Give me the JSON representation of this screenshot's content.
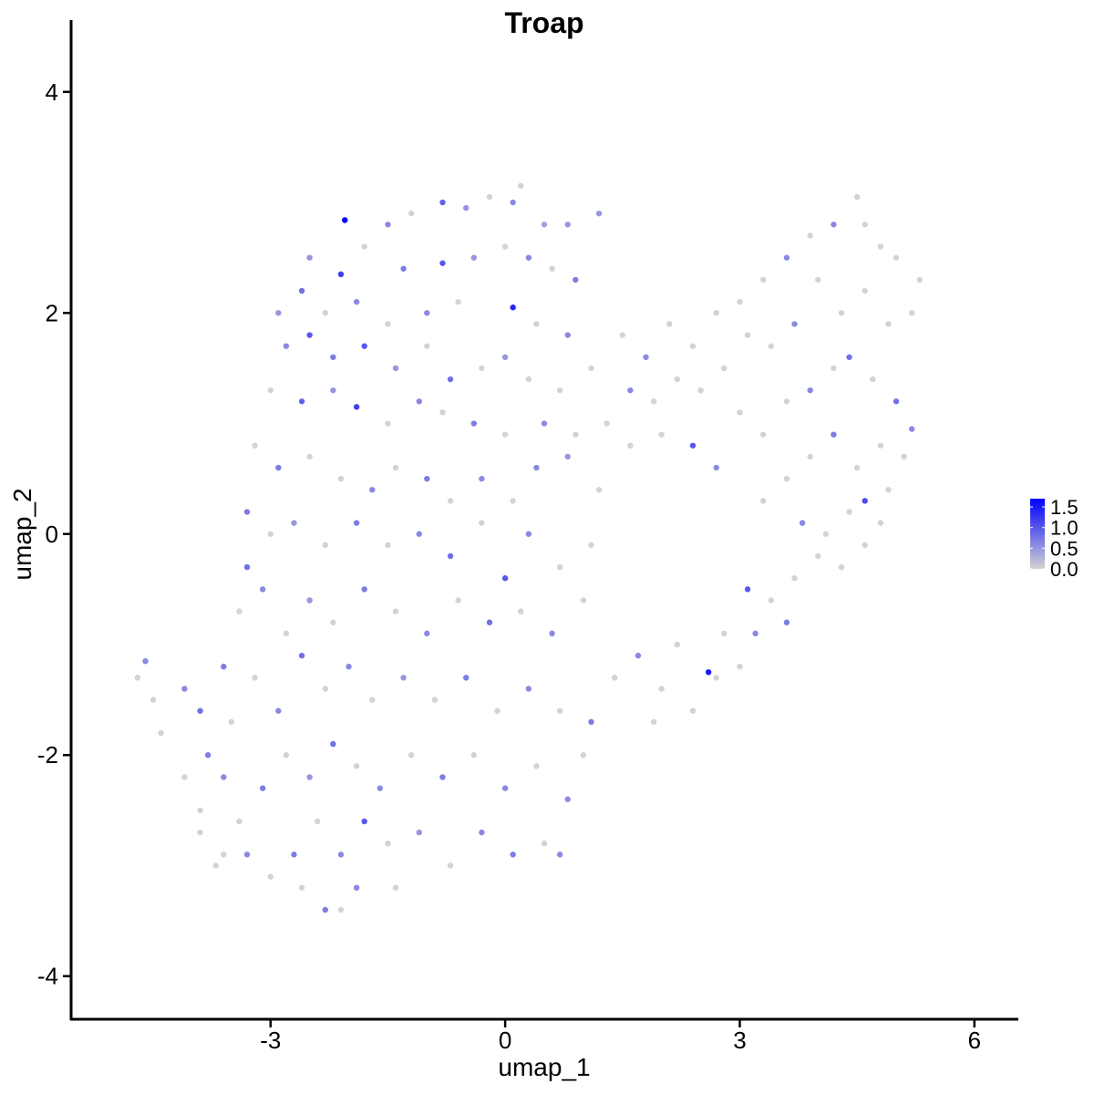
{
  "chart_data": {
    "type": "scatter",
    "title": "Troap",
    "xlabel": "umap_1",
    "ylabel": "umap_2",
    "xlim": [
      -5.55,
      6.55
    ],
    "ylim": [
      -4.39,
      4.65
    ],
    "xticks": [
      -3,
      0,
      3,
      6
    ],
    "yticks": [
      -4,
      -2,
      0,
      2,
      4
    ],
    "grid": false,
    "legend": {
      "placement": "right",
      "type": "colorbar",
      "ticks": [
        "0.0",
        "0.5",
        "1.0",
        "1.5"
      ],
      "tick_values": [
        0,
        0.5,
        1.0,
        1.5
      ],
      "range": [
        0,
        1.7
      ],
      "low_color": "#D3D3D3",
      "high_color": "#0000FF"
    },
    "point_note_fields": [
      "umap_1",
      "umap_2",
      "expression"
    ],
    "points": [
      [
        -2.05,
        2.84,
        1.7
      ],
      [
        -1.5,
        2.8,
        0.6
      ],
      [
        -1.2,
        2.9,
        0
      ],
      [
        -0.8,
        3.0,
        0.9
      ],
      [
        -0.5,
        2.95,
        0.5
      ],
      [
        -0.2,
        3.05,
        0
      ],
      [
        0.1,
        3.0,
        0.6
      ],
      [
        0.2,
        3.15,
        0
      ],
      [
        0.5,
        2.8,
        0.4
      ],
      [
        0.8,
        2.8,
        0.5
      ],
      [
        1.2,
        2.9,
        0.5
      ],
      [
        -2.5,
        2.5,
        0.5
      ],
      [
        -2.1,
        2.35,
        1.2
      ],
      [
        -1.8,
        2.6,
        0
      ],
      [
        -1.3,
        2.4,
        0.7
      ],
      [
        -0.8,
        2.45,
        1.0
      ],
      [
        -0.4,
        2.5,
        0.5
      ],
      [
        0.0,
        2.6,
        0
      ],
      [
        0.3,
        2.5,
        0.6
      ],
      [
        0.6,
        2.4,
        0
      ],
      [
        0.9,
        2.3,
        0.7
      ],
      [
        -2.6,
        2.2,
        0.8
      ],
      [
        -2.3,
        2.0,
        0
      ],
      [
        -1.9,
        2.1,
        0.6
      ],
      [
        -1.5,
        1.9,
        0
      ],
      [
        -1.0,
        2.0,
        0.6
      ],
      [
        -0.6,
        2.1,
        0
      ],
      [
        0.1,
        2.05,
        1.4
      ],
      [
        0.4,
        1.9,
        0
      ],
      [
        0.8,
        1.8,
        0.6
      ],
      [
        -2.9,
        2.0,
        0.5
      ],
      [
        -2.8,
        1.7,
        0.6
      ],
      [
        -2.5,
        1.8,
        1.0
      ],
      [
        -2.2,
        1.6,
        0.7
      ],
      [
        -1.8,
        1.7,
        1.0
      ],
      [
        -1.4,
        1.5,
        0.5
      ],
      [
        -1.0,
        1.7,
        0
      ],
      [
        -0.7,
        1.4,
        0.8
      ],
      [
        -0.3,
        1.5,
        0
      ],
      [
        0.0,
        1.6,
        0.5
      ],
      [
        0.3,
        1.4,
        0
      ],
      [
        0.7,
        1.3,
        0
      ],
      [
        1.1,
        1.5,
        0
      ],
      [
        -3.0,
        1.3,
        0
      ],
      [
        -2.6,
        1.2,
        0.9
      ],
      [
        -2.2,
        1.3,
        0.5
      ],
      [
        -1.9,
        1.15,
        1.2
      ],
      [
        -1.5,
        1.0,
        0
      ],
      [
        -1.1,
        1.2,
        0.6
      ],
      [
        -0.8,
        1.1,
        0
      ],
      [
        -0.4,
        1.0,
        0.7
      ],
      [
        0.0,
        0.9,
        0
      ],
      [
        0.5,
        1.0,
        0.6
      ],
      [
        0.9,
        0.9,
        0
      ],
      [
        1.3,
        1.0,
        0
      ],
      [
        -3.2,
        0.8,
        0
      ],
      [
        -2.9,
        0.6,
        0.7
      ],
      [
        -2.5,
        0.7,
        0
      ],
      [
        -2.1,
        0.5,
        0
      ],
      [
        -1.7,
        0.4,
        0.6
      ],
      [
        -1.4,
        0.6,
        0
      ],
      [
        -1.0,
        0.5,
        0.7
      ],
      [
        -0.7,
        0.3,
        0
      ],
      [
        -0.3,
        0.5,
        0.6
      ],
      [
        0.1,
        0.3,
        0
      ],
      [
        0.4,
        0.6,
        0.6
      ],
      [
        0.8,
        0.7,
        0.5
      ],
      [
        1.2,
        0.4,
        0
      ],
      [
        1.6,
        0.8,
        0
      ],
      [
        -3.3,
        0.2,
        0.7
      ],
      [
        -3.0,
        0.0,
        0
      ],
      [
        -2.7,
        0.1,
        0.5
      ],
      [
        -2.3,
        -0.1,
        0
      ],
      [
        -1.9,
        0.1,
        0.7
      ],
      [
        -1.5,
        -0.1,
        0
      ],
      [
        -1.1,
        0.0,
        0.6
      ],
      [
        -0.7,
        -0.2,
        0.8
      ],
      [
        -0.3,
        0.1,
        0
      ],
      [
        0.0,
        -0.4,
        1.0
      ],
      [
        0.3,
        0.0,
        0.6
      ],
      [
        0.7,
        -0.3,
        0
      ],
      [
        1.1,
        -0.1,
        0
      ],
      [
        1.5,
        1.8,
        0
      ],
      [
        1.8,
        1.6,
        0.6
      ],
      [
        2.1,
        1.9,
        0
      ],
      [
        2.4,
        1.7,
        0
      ],
      [
        2.7,
        2.0,
        0
      ],
      [
        3.0,
        2.1,
        0
      ],
      [
        3.3,
        2.3,
        0
      ],
      [
        3.6,
        2.5,
        0.6
      ],
      [
        3.9,
        2.7,
        0
      ],
      [
        4.2,
        2.8,
        0.6
      ],
      [
        4.5,
        3.05,
        0
      ],
      [
        4.6,
        2.8,
        0
      ],
      [
        4.8,
        2.6,
        0
      ],
      [
        5.0,
        2.5,
        0
      ],
      [
        5.3,
        2.3,
        0
      ],
      [
        5.2,
        2.0,
        0
      ],
      [
        4.9,
        1.9,
        0
      ],
      [
        4.6,
        2.2,
        0
      ],
      [
        4.3,
        2.0,
        0
      ],
      [
        4.0,
        2.3,
        0
      ],
      [
        3.7,
        1.9,
        0.6
      ],
      [
        3.4,
        1.7,
        0
      ],
      [
        3.1,
        1.8,
        0
      ],
      [
        2.8,
        1.5,
        0
      ],
      [
        2.5,
        1.3,
        0
      ],
      [
        2.2,
        1.4,
        0
      ],
      [
        1.9,
        1.2,
        0
      ],
      [
        1.6,
        1.3,
        0.6
      ],
      [
        2.0,
        0.9,
        0
      ],
      [
        2.4,
        0.8,
        1.0
      ],
      [
        2.7,
        0.6,
        0.6
      ],
      [
        3.0,
        1.1,
        0
      ],
      [
        3.3,
        0.9,
        0
      ],
      [
        3.6,
        1.2,
        0
      ],
      [
        3.9,
        1.3,
        0.6
      ],
      [
        4.2,
        1.5,
        0
      ],
      [
        4.4,
        1.6,
        0.8
      ],
      [
        4.7,
        1.4,
        0
      ],
      [
        5.0,
        1.2,
        0.8
      ],
      [
        5.2,
        0.95,
        0.6
      ],
      [
        5.1,
        0.7,
        0
      ],
      [
        4.8,
        0.8,
        0
      ],
      [
        4.5,
        0.6,
        0
      ],
      [
        4.2,
        0.9,
        0.7
      ],
      [
        3.9,
        0.7,
        0
      ],
      [
        3.6,
        0.5,
        0
      ],
      [
        3.3,
        0.3,
        0
      ],
      [
        3.8,
        0.1,
        0.6
      ],
      [
        4.1,
        0.0,
        0
      ],
      [
        4.4,
        0.2,
        0
      ],
      [
        4.6,
        0.3,
        1.1
      ],
      [
        4.9,
        0.4,
        0
      ],
      [
        4.8,
        0.1,
        0
      ],
      [
        4.6,
        -0.1,
        0
      ],
      [
        4.3,
        -0.3,
        0
      ],
      [
        4.0,
        -0.2,
        0
      ],
      [
        3.7,
        -0.4,
        0
      ],
      [
        3.4,
        -0.6,
        0
      ],
      [
        3.1,
        -0.5,
        1.0
      ],
      [
        2.8,
        -0.9,
        0
      ],
      [
        3.2,
        -0.9,
        0.6
      ],
      [
        3.6,
        -0.8,
        0.7
      ],
      [
        3.0,
        -1.2,
        0
      ],
      [
        2.7,
        -1.3,
        0
      ],
      [
        2.6,
        -1.25,
        1.5
      ],
      [
        2.2,
        -1.0,
        0
      ],
      [
        2.4,
        -1.6,
        0
      ],
      [
        2.0,
        -1.4,
        0
      ],
      [
        1.7,
        -1.1,
        0.6
      ],
      [
        1.4,
        -1.3,
        0
      ],
      [
        1.9,
        -1.7,
        0
      ],
      [
        -4.7,
        -1.3,
        0
      ],
      [
        -4.6,
        -1.15,
        0.6
      ],
      [
        -4.5,
        -1.5,
        0
      ],
      [
        -4.4,
        -1.8,
        0
      ],
      [
        -4.1,
        -1.4,
        0.6
      ],
      [
        -3.9,
        -1.6,
        0.8
      ],
      [
        -3.8,
        -2.0,
        0.7
      ],
      [
        -4.1,
        -2.2,
        0
      ],
      [
        -3.9,
        -2.5,
        0
      ],
      [
        -3.6,
        -2.2,
        0.6
      ],
      [
        -3.5,
        -1.7,
        0
      ],
      [
        -3.6,
        -1.2,
        0.7
      ],
      [
        -3.4,
        -0.7,
        0
      ],
      [
        -3.3,
        -0.3,
        0.8
      ],
      [
        -3.1,
        -0.5,
        0.6
      ],
      [
        -2.8,
        -0.9,
        0
      ],
      [
        -2.5,
        -0.6,
        0.5
      ],
      [
        -2.2,
        -0.8,
        0
      ],
      [
        -1.8,
        -0.5,
        0.7
      ],
      [
        -1.4,
        -0.7,
        0
      ],
      [
        -1.0,
        -0.9,
        0.6
      ],
      [
        -0.6,
        -0.6,
        0
      ],
      [
        -0.2,
        -0.8,
        0.8
      ],
      [
        0.2,
        -0.7,
        0
      ],
      [
        0.6,
        -0.9,
        0.6
      ],
      [
        1.0,
        -0.6,
        0
      ],
      [
        -3.2,
        -1.3,
        0
      ],
      [
        -2.9,
        -1.6,
        0.6
      ],
      [
        -2.6,
        -1.1,
        0.8
      ],
      [
        -2.3,
        -1.4,
        0
      ],
      [
        -2.0,
        -1.2,
        0.6
      ],
      [
        -1.7,
        -1.5,
        0
      ],
      [
        -1.3,
        -1.3,
        0.5
      ],
      [
        -0.9,
        -1.5,
        0
      ],
      [
        -0.5,
        -1.3,
        0.7
      ],
      [
        -0.1,
        -1.6,
        0
      ],
      [
        0.3,
        -1.4,
        0.6
      ],
      [
        0.7,
        -1.6,
        0
      ],
      [
        1.1,
        -1.7,
        0.7
      ],
      [
        -3.4,
        -2.6,
        0
      ],
      [
        -3.1,
        -2.3,
        0.7
      ],
      [
        -2.8,
        -2.0,
        0
      ],
      [
        -2.5,
        -2.2,
        0.5
      ],
      [
        -2.2,
        -1.9,
        0.8
      ],
      [
        -1.9,
        -2.1,
        0
      ],
      [
        -1.6,
        -2.3,
        0.6
      ],
      [
        -1.2,
        -2.0,
        0
      ],
      [
        -0.8,
        -2.2,
        0.7
      ],
      [
        -0.4,
        -2.0,
        0
      ],
      [
        0.0,
        -2.3,
        0.6
      ],
      [
        0.4,
        -2.1,
        0
      ],
      [
        0.8,
        -2.4,
        0.6
      ],
      [
        1.0,
        -2.0,
        0
      ],
      [
        -3.3,
        -2.9,
        0.6
      ],
      [
        -3.0,
        -3.1,
        0
      ],
      [
        -2.7,
        -2.9,
        0.7
      ],
      [
        -2.4,
        -2.6,
        0
      ],
      [
        -2.1,
        -2.9,
        0.6
      ],
      [
        -1.8,
        -2.6,
        1.0
      ],
      [
        -1.5,
        -2.8,
        0
      ],
      [
        -1.1,
        -2.7,
        0.5
      ],
      [
        -0.7,
        -3.0,
        0
      ],
      [
        -0.3,
        -2.7,
        0.6
      ],
      [
        0.1,
        -2.9,
        0.7
      ],
      [
        0.5,
        -2.8,
        0
      ],
      [
        0.7,
        -2.9,
        0.6
      ],
      [
        -2.3,
        -3.4,
        0.7
      ],
      [
        -2.1,
        -3.4,
        0
      ],
      [
        -1.9,
        -3.2,
        0.6
      ],
      [
        -1.4,
        -3.2,
        0
      ],
      [
        -2.6,
        -3.2,
        0
      ],
      [
        -3.6,
        -2.9,
        0
      ],
      [
        -3.9,
        -2.7,
        0
      ],
      [
        -3.7,
        -3.0,
        0
      ]
    ]
  }
}
